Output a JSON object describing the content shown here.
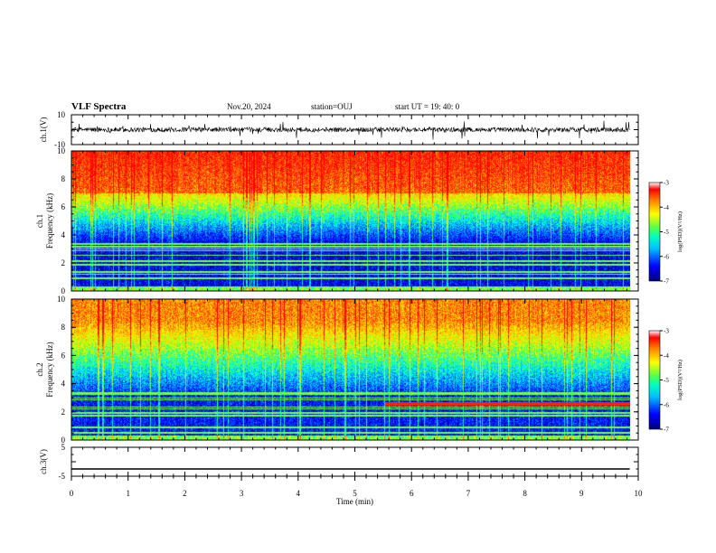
{
  "header": {
    "title": "VLF Spectra",
    "date": "Nov.20, 2024",
    "station": "station=OUJ",
    "start_time": "start UT = 19: 40: 0"
  },
  "chart_data": [
    {
      "type": "line",
      "name": "ch1-waveform",
      "ylabel": "ch.1(V)",
      "ylim": [
        -10,
        10
      ],
      "ytick_labels": [
        "10",
        "-10"
      ],
      "xlim": [
        0,
        10
      ]
    },
    {
      "type": "heatmap",
      "name": "ch1-spectrogram",
      "ylabel_top": "ch.1",
      "ylabel": "Frequency (kHz)",
      "ylim": [
        0,
        10
      ],
      "yticks": [
        0,
        2,
        4,
        6,
        8,
        10
      ],
      "xlim": [
        0,
        10
      ],
      "data_end_min": 9.85,
      "colorbar": {
        "label": "log(PSD)(V²/Hz)",
        "range": [
          -7,
          -3
        ],
        "tick_labels": [
          "-3",
          "-4",
          "-5",
          "-6",
          "-7"
        ]
      }
    },
    {
      "type": "heatmap",
      "name": "ch2-spectrogram",
      "ylabel_top": "ch.2",
      "ylabel": "Frequency (kHz)",
      "ylim": [
        0,
        10
      ],
      "yticks": [
        0,
        2,
        4,
        6,
        8,
        10
      ],
      "xlim": [
        0,
        10
      ],
      "data_end_min": 9.85,
      "colorbar": {
        "label": "log(PSD)(V²/Hz)",
        "range": [
          -7,
          -3
        ],
        "tick_labels": [
          "-3",
          "-4",
          "-5",
          "-6",
          "-7"
        ]
      }
    },
    {
      "type": "line",
      "name": "ch3-waveform",
      "ylabel": "ch.3(V)",
      "ylim": [
        -5,
        5
      ],
      "ytick_labels": [
        "5",
        "-5"
      ],
      "xlim": [
        0,
        10
      ],
      "xlabel": "Time (min)",
      "xticks": [
        0,
        1,
        2,
        3,
        4,
        5,
        6,
        7,
        8,
        9,
        10
      ],
      "constant_value": -2.5
    }
  ],
  "colors": {
    "colormap": [
      "#00007a",
      "#0000ff",
      "#0080ff",
      "#00ffff",
      "#80ff60",
      "#ffff00",
      "#ff8000",
      "#ff0000",
      "#c00000"
    ]
  }
}
